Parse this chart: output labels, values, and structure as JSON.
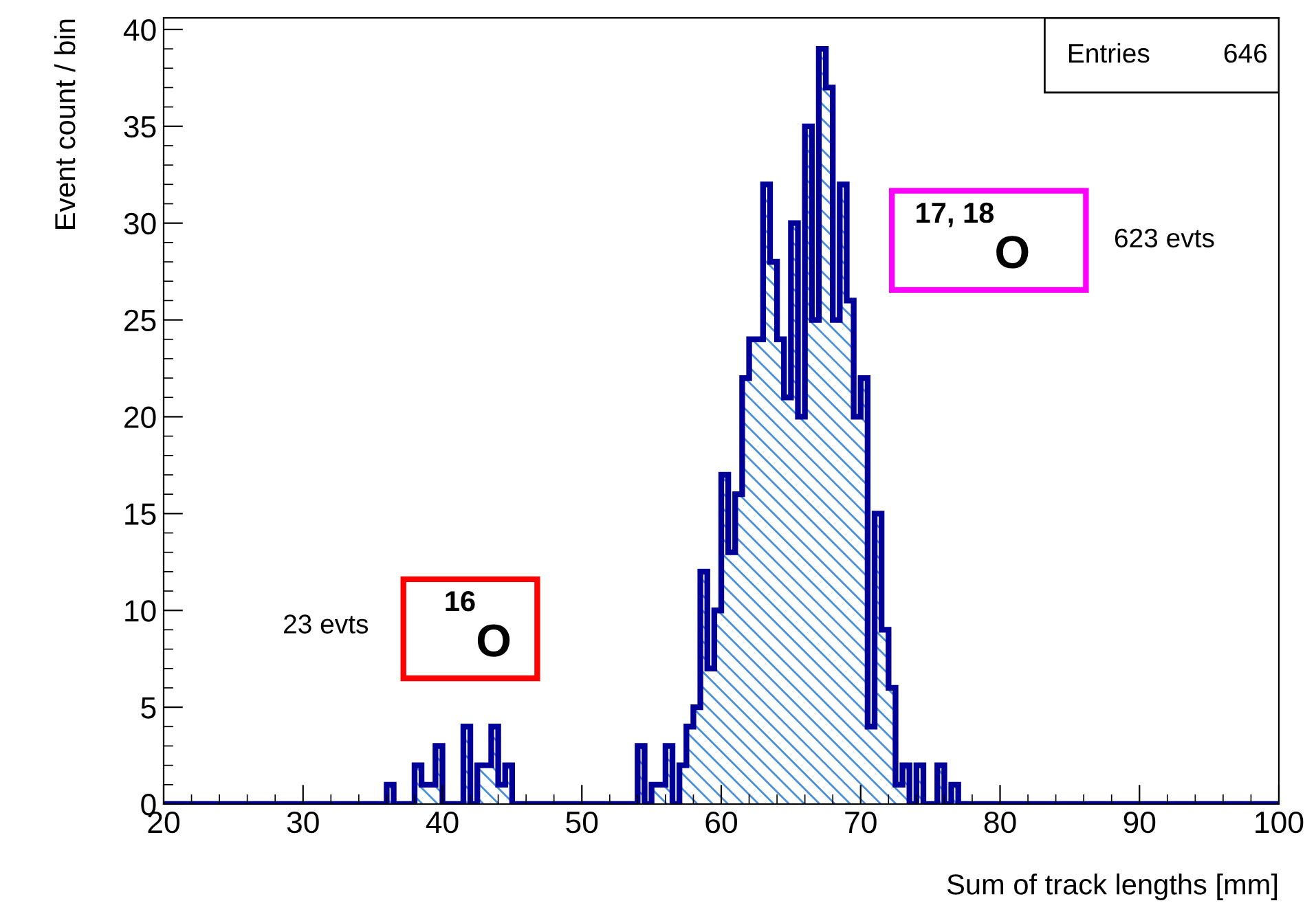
{
  "chart_data": {
    "type": "histogram",
    "xlabel": "Sum of track lengths [mm]",
    "ylabel": "Event count / bin",
    "bins": [
      20,
      20.5,
      21,
      21.5,
      22,
      22.5,
      23,
      23.5,
      24,
      24.5,
      25,
      25.5,
      26,
      26.5,
      27,
      27.5,
      28,
      28.5,
      29,
      29.5,
      30,
      30.5,
      31,
      31.5,
      32,
      32.5,
      33,
      33.5,
      34,
      34.5,
      35,
      35.5,
      36,
      36.5,
      37,
      37.5,
      38,
      38.5,
      39,
      39.5,
      40,
      40.5,
      41,
      41.5,
      42,
      42.5,
      43,
      43.5,
      44,
      44.5,
      45,
      45.5,
      46,
      46.5,
      47,
      47.5,
      48,
      48.5,
      49,
      49.5,
      50,
      50.5,
      51,
      51.5,
      52,
      52.5,
      53,
      53.5,
      54,
      54.5,
      55,
      55.5,
      56,
      56.5,
      57,
      57.5,
      58,
      58.5,
      59,
      59.5,
      60,
      60.5,
      61,
      61.5,
      62,
      62.5,
      63,
      63.5,
      64,
      64.5,
      65,
      65.5,
      66,
      66.5,
      67,
      67.5,
      68,
      68.5,
      69,
      69.5,
      70,
      70.5,
      71,
      71.5,
      72,
      72.5,
      73,
      73.5,
      74,
      74.5,
      75,
      75.5,
      76,
      76.5,
      77,
      77.5,
      78,
      78.5,
      79,
      79.5,
      80,
      80.5,
      81,
      81.5,
      82,
      82.5,
      83,
      83.5,
      84,
      84.5,
      85,
      85.5,
      86,
      86.5,
      87,
      87.5,
      88,
      88.5,
      89,
      89.5,
      90,
      90.5,
      91,
      91.5,
      92,
      92.5,
      93,
      93.5,
      94,
      94.5,
      95,
      95.5,
      96,
      96.5,
      97,
      97.5,
      98,
      98.5,
      99,
      99.5,
      100
    ],
    "values": [
      0,
      0,
      0,
      0,
      0,
      0,
      0,
      0,
      0,
      0,
      0,
      0,
      0,
      0,
      0,
      0,
      0,
      0,
      0,
      0,
      0,
      0,
      0,
      0,
      0,
      0,
      0,
      0,
      0,
      0,
      0,
      0,
      1,
      0,
      0,
      0,
      2,
      1,
      1,
      3,
      0,
      0,
      0,
      4,
      0,
      2,
      2,
      4,
      1,
      2,
      0,
      0,
      0,
      0,
      0,
      0,
      0,
      0,
      0,
      0,
      0,
      0,
      0,
      0,
      0,
      0,
      0,
      0,
      3,
      0,
      1,
      1,
      3,
      0,
      2,
      4,
      5,
      12,
      7,
      10,
      17,
      13,
      16,
      22,
      24,
      24,
      32,
      28,
      24,
      21,
      30,
      20,
      35,
      25,
      39,
      37,
      25,
      32,
      26,
      20,
      22,
      4,
      15,
      9,
      6,
      1,
      2,
      0,
      2,
      0,
      0,
      2,
      0,
      1,
      0,
      0,
      0,
      0,
      0,
      0,
      0,
      0,
      0,
      0,
      0,
      0,
      0,
      0,
      0,
      0,
      0,
      0,
      0,
      0,
      0,
      0,
      0,
      0,
      0,
      0,
      0,
      0,
      0,
      0,
      0,
      0,
      0,
      0,
      0,
      0,
      0,
      0,
      0,
      0,
      0,
      0,
      0,
      0,
      0,
      0
    ],
    "color": "#000099",
    "xlim": [
      20,
      100
    ],
    "xticks": [
      20,
      30,
      40,
      50,
      60,
      70,
      80,
      90,
      100
    ],
    "ylim": [
      0,
      40.6
    ],
    "yticks": [
      0,
      5,
      10,
      15,
      20,
      25,
      30,
      35,
      40
    ],
    "grid": false,
    "annotations": [
      "Entries",
      "646",
      "$^{17, 18}$O",
      "623 evts",
      "$^{16}$O",
      "23 evts"
    ]
  }
}
